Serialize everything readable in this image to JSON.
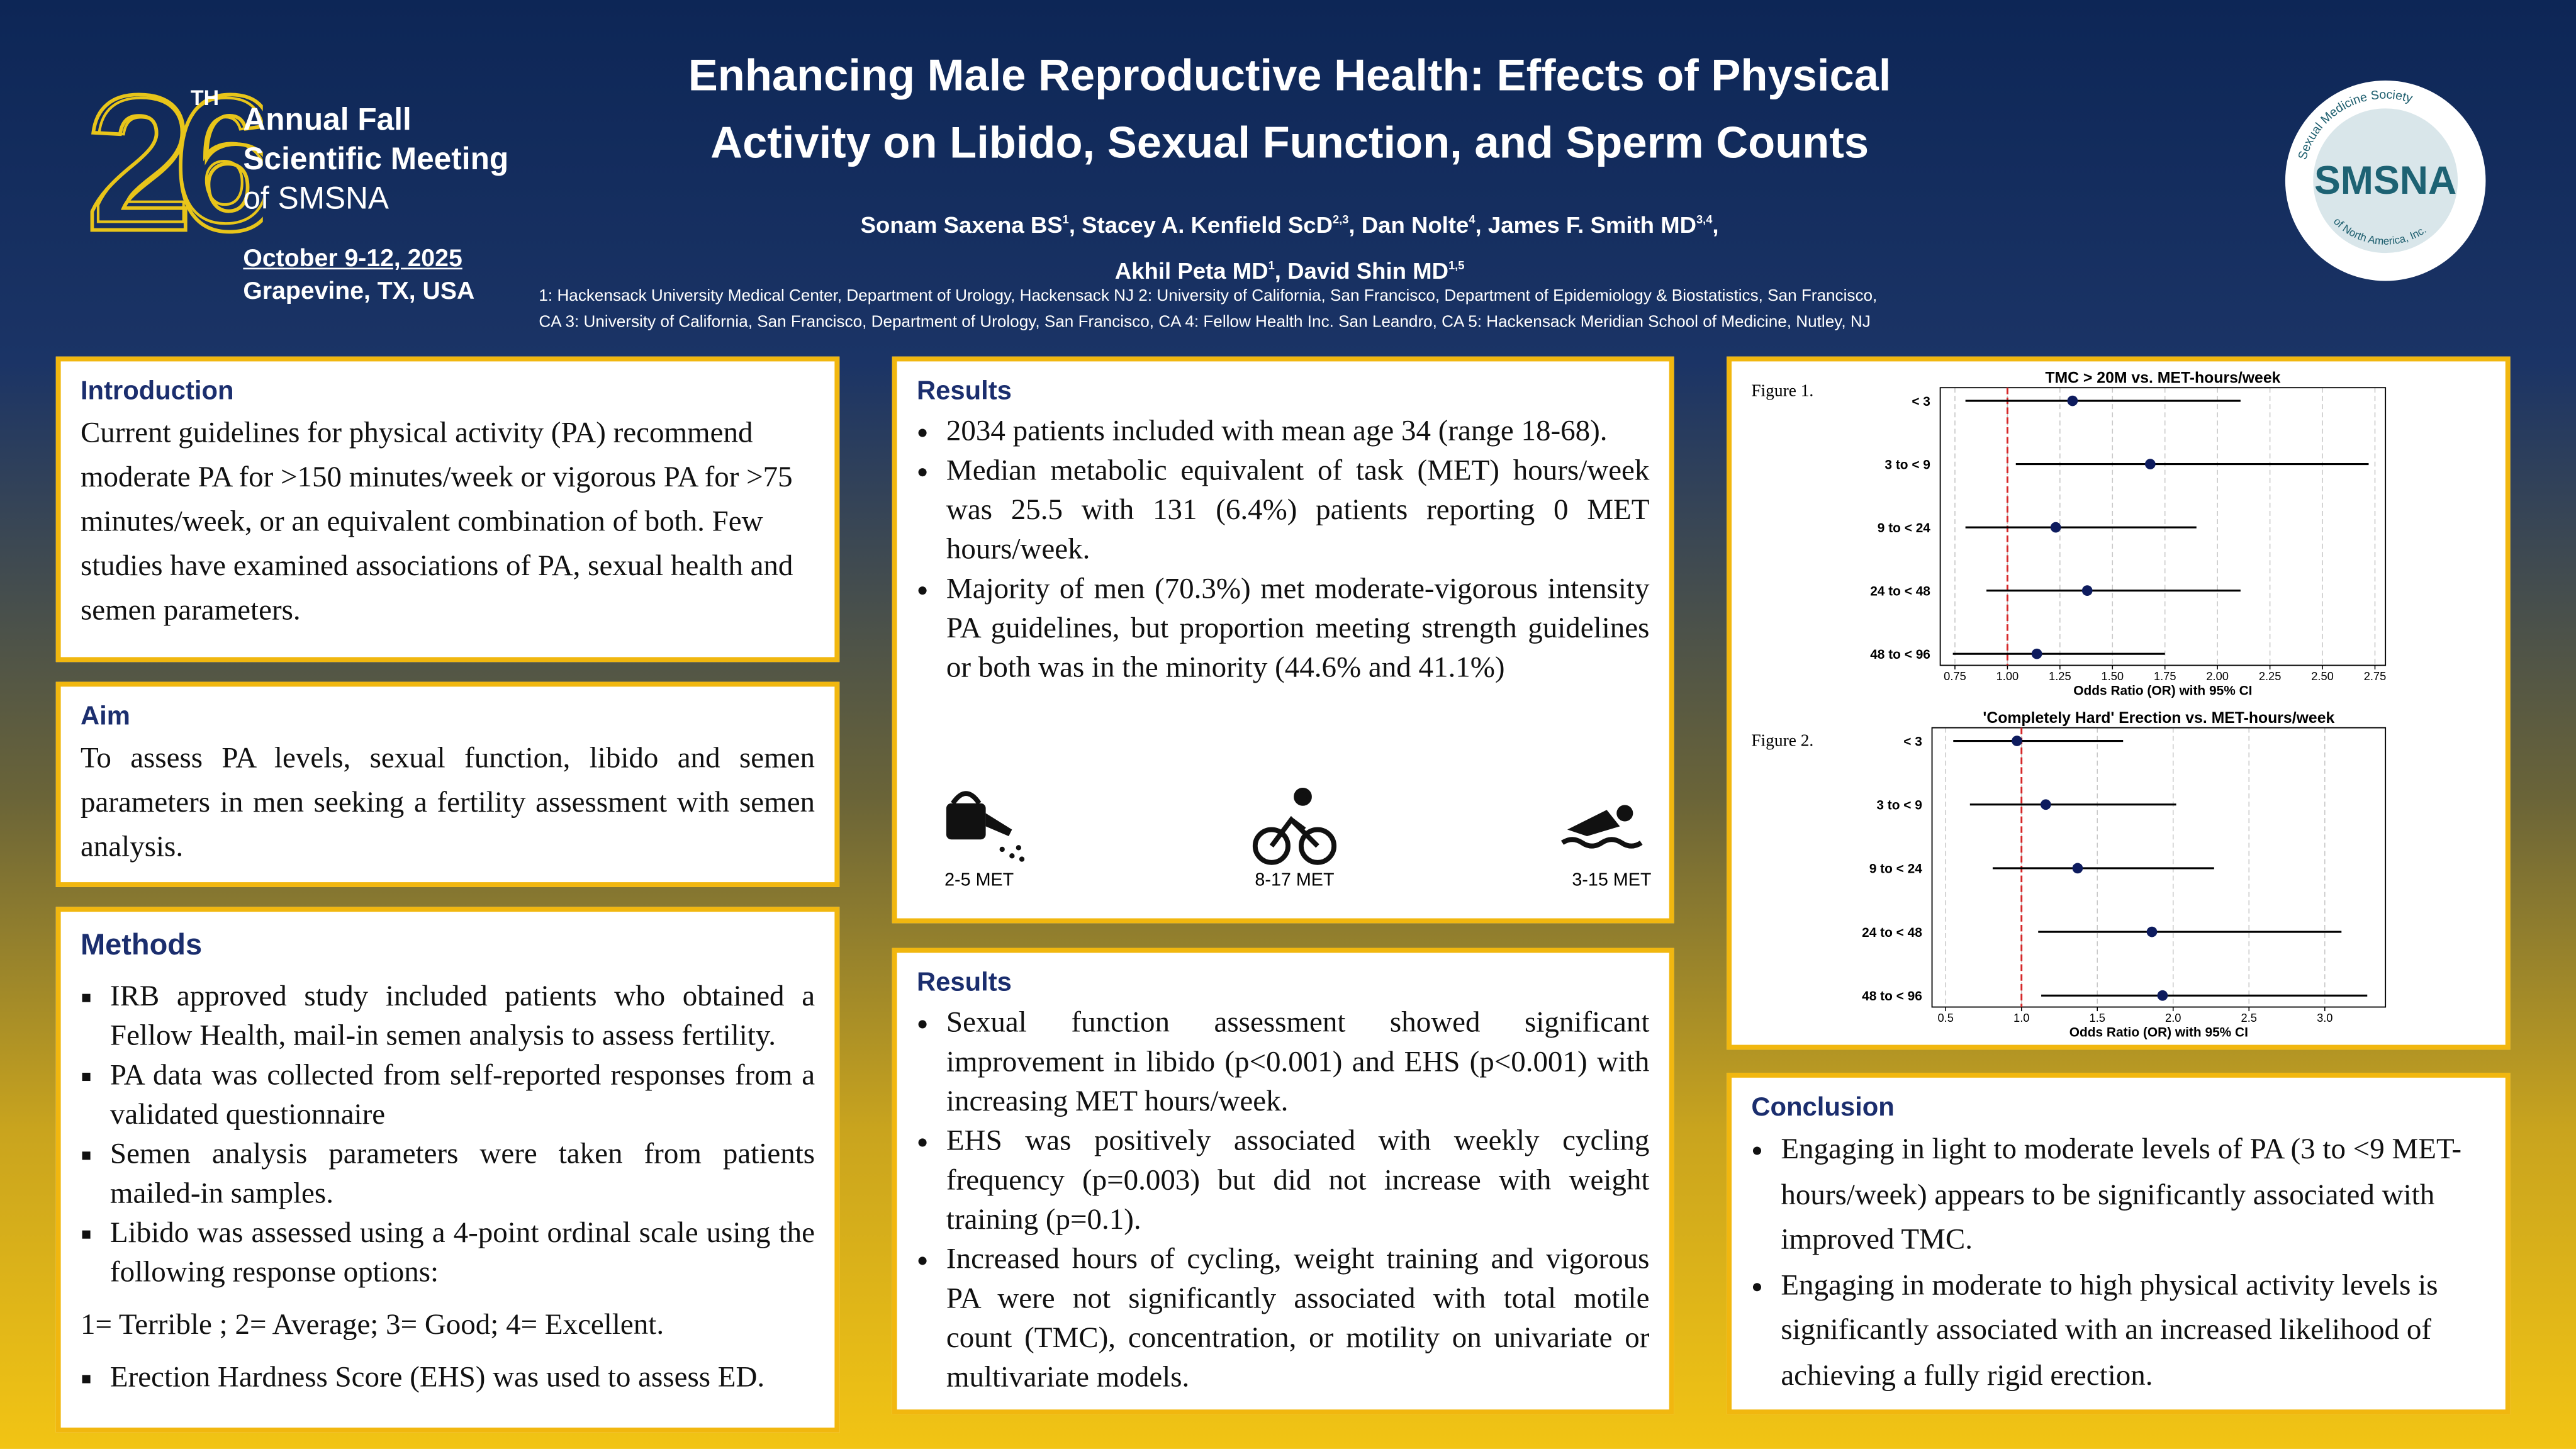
{
  "header": {
    "edition_number": "26",
    "edition_suffix": "TH",
    "meeting_lines": [
      "Annual Fall",
      "Scientific Meeting",
      "of SMSNA"
    ],
    "date": "October 9-12, 2025",
    "place": "Grapevine, TX, USA",
    "title_lines": [
      "Enhancing Male Reproductive Health: Effects of Physical",
      "Activity on Libido, Sexual Function, and Sperm Counts"
    ],
    "author_lines": [
      [
        {
          "name": "Sonam Saxena BS",
          "sup": "1",
          "after": ","
        },
        {
          "name": "Stacey A. Kenfield ScD",
          "sup": "2,3",
          "after": ","
        },
        {
          "name": "Dan Nolte",
          "sup": "4",
          "after": ","
        },
        {
          "name": "James F. Smith MD",
          "sup": "3,4",
          "after": ","
        }
      ],
      [
        {
          "name": "Akhil Peta MD",
          "sup": "1",
          "after": ","
        },
        {
          "name": "David Shin MD",
          "sup": "1,5"
        }
      ]
    ],
    "affiliation_lines": [
      "1: Hackensack University Medical Center, Department of Urology, Hackensack NJ 2: University of California, San Francisco, Department of Epidemiology & Biostatistics, San Francisco,",
      "CA 3: University of California, San Francisco, Department of Urology, San Francisco, CA 4: Fellow Health Inc. San Leandro, CA 5: Hackensack Meridian School of Medicine, Nutley, NJ"
    ],
    "logo": {
      "acronym": "SMSNA",
      "ring_top": "Sexual Medicine Society",
      "ring_bottom": "of North America, Inc."
    }
  },
  "introduction": {
    "heading": "Introduction",
    "text": "Current guidelines for physical activity (PA) recommend moderate PA for >150 minutes/week or vigorous PA for >75 minutes/week, or an equivalent combination of both.  Few studies have examined associations of PA, sexual health and semen parameters."
  },
  "aim": {
    "heading": "Aim",
    "text": "To assess PA levels, sexual function, libido and semen parameters in men seeking a fertility assessment with semen analysis."
  },
  "methods": {
    "heading": "Methods",
    "items": [
      "IRB approved study included patients who obtained a Fellow Health, mail-in semen analysis to assess fertility.",
      "PA data was collected from self-reported responses from a validated questionnaire",
      "Semen analysis parameters were taken from patients mailed-in samples.",
      "Libido was assessed using a 4-point ordinal scale using the following response options:",
      "Erection Hardness Score (EHS) was used to assess ED."
    ],
    "scale_note": "1= Terrible ; 2= Average; 3= Good; 4= Excellent."
  },
  "results_1": {
    "heading": "Results",
    "items": [
      "2034 patients included with mean age 34 (range 18-68).",
      "Median metabolic equivalent of task (MET) hours/week was 25.5 with 131 (6.4%) patients reporting 0 MET hours/week.",
      "Majority of men (70.3%) met moderate-vigorous intensity PA guidelines, but proportion meeting strength guidelines or both was in the minority (44.6% and 41.1%)"
    ],
    "icon_labels": [
      "2-5 MET",
      "8-17 MET",
      "3-15 MET"
    ]
  },
  "results_2": {
    "heading": "Results",
    "items": [
      "Sexual function assessment showed significant improvement in libido (p<0.001) and EHS (p<0.001) with increasing MET hours/week.",
      "EHS was positively associated with weekly cycling frequency (p=0.003) but did not increase with weight training (p=0.1).",
      "Increased hours of cycling, weight training and vigorous PA were not significantly associated with total motile count (TMC), concentration, or motility on univariate or multivariate models."
    ]
  },
  "figures": [
    {
      "type": "forest",
      "label": "Figure  1.",
      "title": "TMC > 20M vs. MET-hours/week",
      "x_label": "Odds Ratio (OR) with 95% CI",
      "categories": [
        "< 3",
        "3 to < 9",
        "9 to < 24",
        "24 to < 48",
        "48 to < 96"
      ],
      "values": [
        1.31,
        1.68,
        1.23,
        1.38,
        1.14
      ],
      "ci_low": [
        0.8,
        1.04,
        0.8,
        0.9,
        0.74
      ],
      "ci_high": [
        2.11,
        2.72,
        1.9,
        2.11,
        1.75
      ],
      "color": "#0d1b5e",
      "ref_line": 1,
      "ref_color": "#d62728",
      "grid": true,
      "xlim": [
        0.68,
        2.8
      ],
      "xticks": [
        0.75,
        {
          "value": 1,
          "label": "1.00"
        },
        1.25,
        {
          "value": 1.5,
          "label": "1.50"
        },
        1.75,
        {
          "value": 2,
          "label": "2.00"
        },
        2.25,
        {
          "value": 2.5,
          "label": "2.50"
        },
        2.75
      ]
    },
    {
      "type": "forest",
      "label": "Figure  2.",
      "title": "'Completely Hard' Erection vs. MET-hours/week",
      "x_label": "Odds Ratio (OR) with 95% CI",
      "categories": [
        "< 3",
        "3 to < 9",
        "9 to < 24",
        "24 to < 48",
        "48 to < 96"
      ],
      "values": [
        0.97,
        1.16,
        1.37,
        1.86,
        1.93
      ],
      "ci_low": [
        0.55,
        0.66,
        0.81,
        1.11,
        1.13
      ],
      "ci_high": [
        1.67,
        2.02,
        2.27,
        3.11,
        3.28
      ],
      "color": "#0d1b5e",
      "ref_line": 1,
      "ref_color": "#d62728",
      "grid": true,
      "xlim": [
        0.41,
        3.4
      ],
      "xticks": [
        0.5,
        {
          "value": 1,
          "label": "1.0"
        },
        1.5,
        {
          "value": 2,
          "label": "2.0"
        },
        2.5,
        {
          "value": 3,
          "label": "3.0"
        }
      ]
    }
  ],
  "conclusion": {
    "heading": "Conclusion",
    "items": [
      "Engaging in light to moderate levels of PA (3 to <9 MET-hours/week) appears to be significantly associated with improved TMC.",
      "Engaging in moderate to high physical activity levels is significantly associated with an increased likelihood of achieving a fully rigid erection."
    ]
  }
}
